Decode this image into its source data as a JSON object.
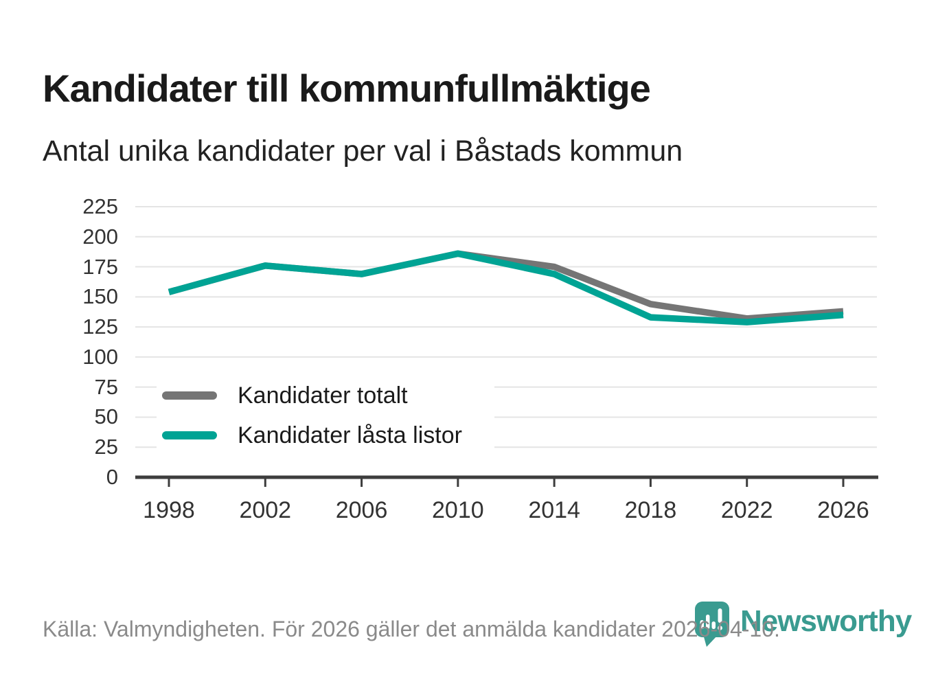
{
  "header": {
    "title": "Kandidater till kommunfullmäktige",
    "subtitle": "Antal unika kandidater per val i Båstads kommun"
  },
  "chart_data": {
    "type": "line",
    "title": "Kandidater till kommunfullmäktige",
    "subtitle": "Antal unika kandidater per val i Båstads kommun",
    "categories": [
      "1998",
      "2002",
      "2006",
      "2010",
      "2014",
      "2018",
      "2022",
      "2026"
    ],
    "series": [
      {
        "name": "Kandidater totalt",
        "color": "#757575",
        "values": [
          154,
          176,
          169,
          186,
          175,
          144,
          132,
          138
        ]
      },
      {
        "name": "Kandidater låsta listor",
        "color": "#00a394",
        "values": [
          154,
          176,
          169,
          186,
          169,
          133,
          129,
          135
        ]
      }
    ],
    "xlabel": "",
    "ylabel": "",
    "ylim": [
      0,
      225
    ],
    "yticks": [
      0,
      25,
      50,
      75,
      100,
      125,
      150,
      175,
      200,
      225
    ],
    "grid": "horizontal",
    "legend_position": "inside-bottom-left",
    "colors": {
      "gridline": "#e4e4e4",
      "axis": "#3d3d3d",
      "tick_label": "#333333"
    }
  },
  "footer": {
    "source": "Källa: Valmyndigheten. För 2026 gäller det anmälda kandidater 2026-04-10.",
    "brand": "Newsworthy",
    "brand_color": "#3a9b90"
  }
}
